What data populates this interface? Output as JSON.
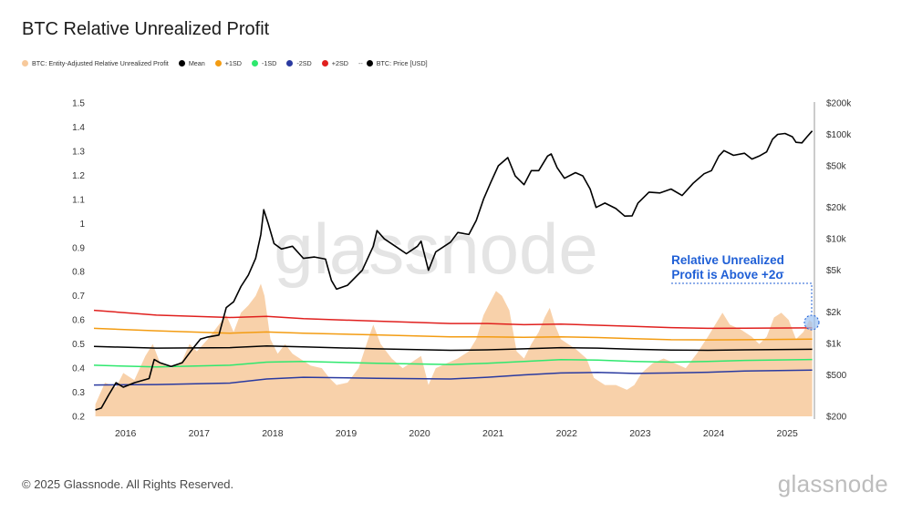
{
  "title": "BTC Relative Unrealized Profit",
  "legend": [
    {
      "label": "BTC: Entity-Adjusted Relative Unrealized Profit",
      "color": "#f7c99b",
      "marker": "dot"
    },
    {
      "label": "Mean",
      "color": "#000000",
      "marker": "dot"
    },
    {
      "label": "+1SD",
      "color": "#f39c12",
      "marker": "dot"
    },
    {
      "label": "-1SD",
      "color": "#2ee86e",
      "marker": "dot"
    },
    {
      "label": "-2SD",
      "color": "#2a3aa0",
      "marker": "dot"
    },
    {
      "label": "+2SD",
      "color": "#e0201e",
      "marker": "dot"
    },
    {
      "label": "BTC: Price [USD]",
      "color": "#000000",
      "marker": "dash-dot",
      "dash": "--"
    }
  ],
  "watermark": "glassnode",
  "annotation": {
    "line1": "Relative Unrealized",
    "line2": "Profit is Above +2σ",
    "color": "#1f5fd6"
  },
  "footer": "© 2025 Glassnode. All Rights Reserved.",
  "brand": "glassnode",
  "chart_data": {
    "type": "area",
    "title": "BTC Relative Unrealized Profit",
    "x_ticks": [
      "2016",
      "2017",
      "2018",
      "2019",
      "2020",
      "2021",
      "2022",
      "2023",
      "2024",
      "2025"
    ],
    "x_range": [
      2015.65,
      2025.45
    ],
    "left_axis": {
      "ticks": [
        "0.2",
        "0.3",
        "0.4",
        "0.5",
        "0.6",
        "0.7",
        "0.8",
        "0.9",
        "1",
        "1.1",
        "1.2",
        "1.3",
        "1.4",
        "1.5"
      ],
      "range": [
        0.2,
        1.5
      ]
    },
    "right_axis": {
      "scale": "log",
      "ticks": [
        "$200",
        "$500",
        "$1k",
        "$2k",
        "$5k",
        "$10k",
        "$20k",
        "$50k",
        "$100k",
        "$200k"
      ],
      "range": [
        200,
        200000
      ]
    },
    "grid": false,
    "legend_position": "top-left",
    "series": [
      {
        "name": "BTC: Entity-Adjusted Relative Unrealized Profit",
        "type": "area",
        "axis": "left",
        "color": "#f7c99b",
        "points": [
          [
            2015.67,
            0.25
          ],
          [
            2015.8,
            0.34
          ],
          [
            2015.95,
            0.32
          ],
          [
            2016.05,
            0.38
          ],
          [
            2016.2,
            0.35
          ],
          [
            2016.35,
            0.45
          ],
          [
            2016.45,
            0.5
          ],
          [
            2016.55,
            0.42
          ],
          [
            2016.7,
            0.4
          ],
          [
            2016.85,
            0.43
          ],
          [
            2016.95,
            0.5
          ],
          [
            2017.05,
            0.47
          ],
          [
            2017.2,
            0.52
          ],
          [
            2017.35,
            0.58
          ],
          [
            2017.45,
            0.62
          ],
          [
            2017.55,
            0.55
          ],
          [
            2017.65,
            0.63
          ],
          [
            2017.75,
            0.66
          ],
          [
            2017.85,
            0.7
          ],
          [
            2017.92,
            0.75
          ],
          [
            2017.97,
            0.7
          ],
          [
            2018.05,
            0.52
          ],
          [
            2018.15,
            0.46
          ],
          [
            2018.25,
            0.5
          ],
          [
            2018.35,
            0.46
          ],
          [
            2018.45,
            0.44
          ],
          [
            2018.6,
            0.41
          ],
          [
            2018.75,
            0.4
          ],
          [
            2018.85,
            0.36
          ],
          [
            2018.95,
            0.33
          ],
          [
            2019.1,
            0.34
          ],
          [
            2019.25,
            0.4
          ],
          [
            2019.38,
            0.52
          ],
          [
            2019.45,
            0.58
          ],
          [
            2019.55,
            0.5
          ],
          [
            2019.7,
            0.44
          ],
          [
            2019.85,
            0.4
          ],
          [
            2019.95,
            0.42
          ],
          [
            2020.1,
            0.45
          ],
          [
            2020.2,
            0.33
          ],
          [
            2020.3,
            0.4
          ],
          [
            2020.45,
            0.42
          ],
          [
            2020.6,
            0.44
          ],
          [
            2020.75,
            0.47
          ],
          [
            2020.85,
            0.52
          ],
          [
            2020.95,
            0.62
          ],
          [
            2021.05,
            0.68
          ],
          [
            2021.12,
            0.72
          ],
          [
            2021.2,
            0.7
          ],
          [
            2021.3,
            0.64
          ],
          [
            2021.4,
            0.47
          ],
          [
            2021.5,
            0.44
          ],
          [
            2021.6,
            0.5
          ],
          [
            2021.7,
            0.55
          ],
          [
            2021.78,
            0.61
          ],
          [
            2021.85,
            0.65
          ],
          [
            2021.92,
            0.58
          ],
          [
            2022.0,
            0.52
          ],
          [
            2022.1,
            0.5
          ],
          [
            2022.2,
            0.48
          ],
          [
            2022.35,
            0.44
          ],
          [
            2022.45,
            0.36
          ],
          [
            2022.6,
            0.33
          ],
          [
            2022.75,
            0.33
          ],
          [
            2022.9,
            0.31
          ],
          [
            2023.0,
            0.33
          ],
          [
            2023.1,
            0.38
          ],
          [
            2023.25,
            0.42
          ],
          [
            2023.4,
            0.44
          ],
          [
            2023.55,
            0.42
          ],
          [
            2023.7,
            0.4
          ],
          [
            2023.85,
            0.46
          ],
          [
            2024.0,
            0.53
          ],
          [
            2024.1,
            0.58
          ],
          [
            2024.2,
            0.63
          ],
          [
            2024.3,
            0.58
          ],
          [
            2024.45,
            0.56
          ],
          [
            2024.6,
            0.53
          ],
          [
            2024.7,
            0.5
          ],
          [
            2024.8,
            0.53
          ],
          [
            2024.9,
            0.61
          ],
          [
            2025.0,
            0.63
          ],
          [
            2025.1,
            0.6
          ],
          [
            2025.2,
            0.52
          ],
          [
            2025.3,
            0.55
          ],
          [
            2025.38,
            0.6
          ],
          [
            2025.42,
            0.59
          ]
        ]
      },
      {
        "name": "+2SD",
        "type": "line",
        "axis": "left",
        "color": "#e0201e",
        "points": [
          [
            2015.65,
            0.64
          ],
          [
            2016.5,
            0.62
          ],
          [
            2017.5,
            0.61
          ],
          [
            2018.0,
            0.615
          ],
          [
            2018.5,
            0.605
          ],
          [
            2019.5,
            0.595
          ],
          [
            2020.5,
            0.585
          ],
          [
            2021.0,
            0.585
          ],
          [
            2021.5,
            0.58
          ],
          [
            2022.0,
            0.583
          ],
          [
            2022.5,
            0.578
          ],
          [
            2023.0,
            0.573
          ],
          [
            2023.5,
            0.568
          ],
          [
            2024.0,
            0.565
          ],
          [
            2024.5,
            0.566
          ],
          [
            2025.42,
            0.567
          ]
        ]
      },
      {
        "name": "+1SD",
        "type": "line",
        "axis": "left",
        "color": "#f39c12",
        "points": [
          [
            2015.65,
            0.565
          ],
          [
            2016.5,
            0.555
          ],
          [
            2017.5,
            0.545
          ],
          [
            2018.0,
            0.55
          ],
          [
            2018.5,
            0.545
          ],
          [
            2019.5,
            0.538
          ],
          [
            2020.5,
            0.53
          ],
          [
            2021.0,
            0.53
          ],
          [
            2021.5,
            0.528
          ],
          [
            2022.0,
            0.53
          ],
          [
            2022.5,
            0.527
          ],
          [
            2023.0,
            0.522
          ],
          [
            2023.5,
            0.518
          ],
          [
            2024.0,
            0.517
          ],
          [
            2024.5,
            0.518
          ],
          [
            2025.42,
            0.52
          ]
        ]
      },
      {
        "name": "Mean",
        "type": "line",
        "axis": "left",
        "color": "#000000",
        "points": [
          [
            2015.65,
            0.49
          ],
          [
            2016.5,
            0.483
          ],
          [
            2017.5,
            0.485
          ],
          [
            2018.0,
            0.492
          ],
          [
            2018.5,
            0.488
          ],
          [
            2019.5,
            0.48
          ],
          [
            2020.5,
            0.474
          ],
          [
            2021.0,
            0.476
          ],
          [
            2021.5,
            0.48
          ],
          [
            2022.0,
            0.485
          ],
          [
            2022.5,
            0.483
          ],
          [
            2023.0,
            0.478
          ],
          [
            2023.5,
            0.475
          ],
          [
            2024.0,
            0.474
          ],
          [
            2024.5,
            0.476
          ],
          [
            2025.42,
            0.478
          ]
        ]
      },
      {
        "name": "-1SD",
        "type": "line",
        "axis": "left",
        "color": "#2ee86e",
        "points": [
          [
            2015.65,
            0.412
          ],
          [
            2016.5,
            0.405
          ],
          [
            2017.5,
            0.412
          ],
          [
            2018.0,
            0.425
          ],
          [
            2018.5,
            0.428
          ],
          [
            2019.5,
            0.42
          ],
          [
            2020.5,
            0.415
          ],
          [
            2021.0,
            0.42
          ],
          [
            2021.5,
            0.428
          ],
          [
            2022.0,
            0.435
          ],
          [
            2022.5,
            0.433
          ],
          [
            2023.0,
            0.428
          ],
          [
            2023.5,
            0.425
          ],
          [
            2024.0,
            0.428
          ],
          [
            2024.5,
            0.432
          ],
          [
            2025.42,
            0.436
          ]
        ]
      },
      {
        "name": "-2SD",
        "type": "line",
        "axis": "left",
        "color": "#2a3aa0",
        "points": [
          [
            2015.65,
            0.33
          ],
          [
            2016.5,
            0.332
          ],
          [
            2017.5,
            0.338
          ],
          [
            2018.0,
            0.355
          ],
          [
            2018.5,
            0.362
          ],
          [
            2019.5,
            0.358
          ],
          [
            2020.5,
            0.355
          ],
          [
            2021.0,
            0.362
          ],
          [
            2021.5,
            0.372
          ],
          [
            2022.0,
            0.38
          ],
          [
            2022.5,
            0.382
          ],
          [
            2023.0,
            0.378
          ],
          [
            2023.5,
            0.38
          ],
          [
            2024.0,
            0.383
          ],
          [
            2024.5,
            0.388
          ],
          [
            2025.42,
            0.392
          ]
        ]
      },
      {
        "name": "BTC: Price [USD]",
        "type": "line",
        "axis": "right",
        "color": "#000000",
        "points": [
          [
            2015.67,
            230
          ],
          [
            2015.75,
            240
          ],
          [
            2015.85,
            320
          ],
          [
            2015.95,
            420
          ],
          [
            2016.05,
            380
          ],
          [
            2016.2,
            420
          ],
          [
            2016.4,
            460
          ],
          [
            2016.47,
            700
          ],
          [
            2016.55,
            650
          ],
          [
            2016.7,
            600
          ],
          [
            2016.85,
            650
          ],
          [
            2017.0,
            900
          ],
          [
            2017.1,
            1100
          ],
          [
            2017.2,
            1150
          ],
          [
            2017.35,
            1200
          ],
          [
            2017.45,
            2200
          ],
          [
            2017.55,
            2500
          ],
          [
            2017.65,
            3500
          ],
          [
            2017.75,
            4500
          ],
          [
            2017.85,
            6500
          ],
          [
            2017.92,
            11000
          ],
          [
            2017.96,
            19000
          ],
          [
            2018.02,
            14000
          ],
          [
            2018.1,
            9000
          ],
          [
            2018.2,
            8000
          ],
          [
            2018.35,
            8500
          ],
          [
            2018.5,
            6500
          ],
          [
            2018.65,
            6700
          ],
          [
            2018.8,
            6400
          ],
          [
            2018.88,
            4000
          ],
          [
            2018.95,
            3300
          ],
          [
            2019.1,
            3600
          ],
          [
            2019.3,
            5000
          ],
          [
            2019.45,
            8500
          ],
          [
            2019.5,
            12000
          ],
          [
            2019.6,
            10000
          ],
          [
            2019.75,
            8500
          ],
          [
            2019.9,
            7200
          ],
          [
            2020.05,
            8500
          ],
          [
            2020.1,
            9500
          ],
          [
            2020.2,
            5000
          ],
          [
            2020.3,
            7500
          ],
          [
            2020.5,
            9300
          ],
          [
            2020.6,
            11500
          ],
          [
            2020.75,
            11000
          ],
          [
            2020.85,
            15000
          ],
          [
            2020.95,
            24000
          ],
          [
            2021.05,
            35000
          ],
          [
            2021.15,
            50000
          ],
          [
            2021.28,
            60000
          ],
          [
            2021.38,
            40000
          ],
          [
            2021.5,
            33000
          ],
          [
            2021.6,
            45000
          ],
          [
            2021.7,
            45000
          ],
          [
            2021.82,
            62000
          ],
          [
            2021.87,
            65000
          ],
          [
            2021.95,
            48000
          ],
          [
            2022.05,
            38000
          ],
          [
            2022.2,
            43000
          ],
          [
            2022.3,
            40000
          ],
          [
            2022.4,
            30000
          ],
          [
            2022.48,
            20000
          ],
          [
            2022.6,
            22000
          ],
          [
            2022.75,
            19500
          ],
          [
            2022.87,
            16500
          ],
          [
            2022.97,
            16600
          ],
          [
            2023.05,
            22000
          ],
          [
            2023.2,
            28000
          ],
          [
            2023.35,
            27500
          ],
          [
            2023.5,
            30000
          ],
          [
            2023.65,
            26000
          ],
          [
            2023.8,
            34000
          ],
          [
            2023.95,
            42000
          ],
          [
            2024.05,
            45000
          ],
          [
            2024.15,
            62000
          ],
          [
            2024.22,
            70000
          ],
          [
            2024.35,
            63000
          ],
          [
            2024.5,
            66000
          ],
          [
            2024.6,
            58000
          ],
          [
            2024.7,
            62000
          ],
          [
            2024.8,
            68000
          ],
          [
            2024.88,
            90000
          ],
          [
            2024.95,
            100000
          ],
          [
            2025.05,
            102000
          ],
          [
            2025.15,
            95000
          ],
          [
            2025.2,
            84000
          ],
          [
            2025.28,
            83000
          ],
          [
            2025.35,
            95000
          ],
          [
            2025.42,
            108000
          ]
        ]
      }
    ]
  }
}
